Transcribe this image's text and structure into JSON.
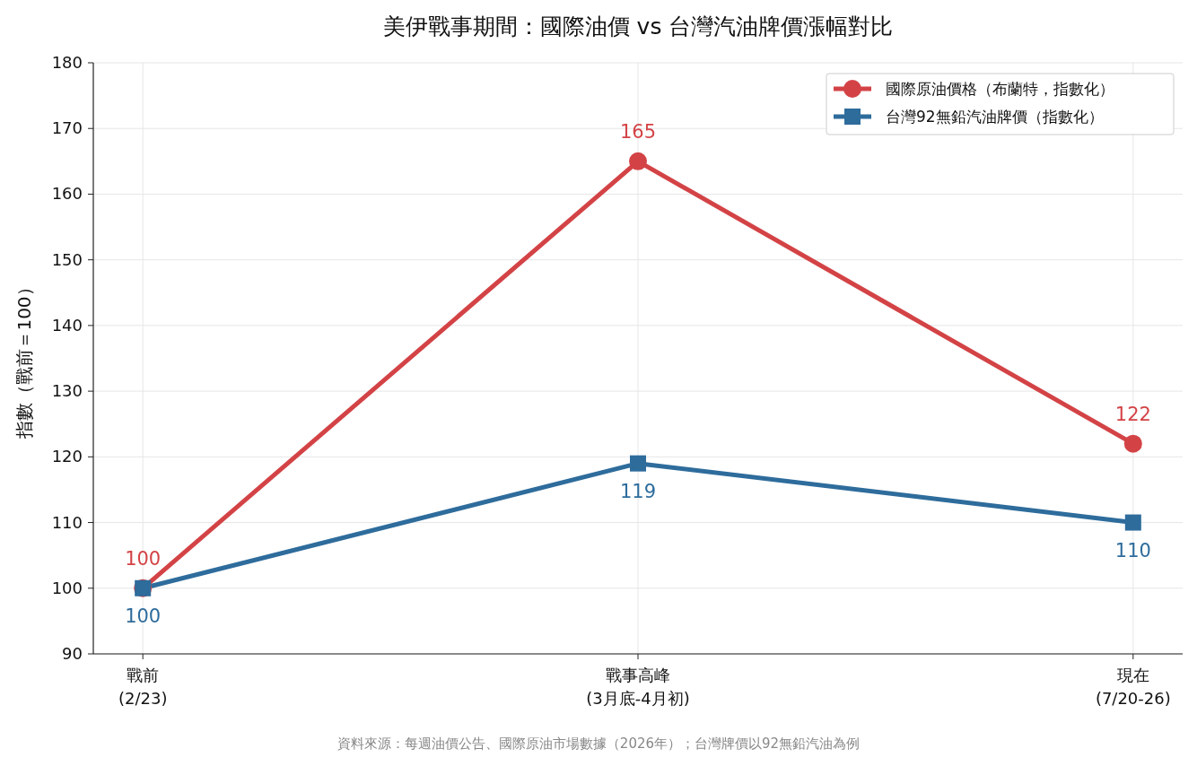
{
  "chart_data": {
    "type": "line",
    "title": "美伊戰事期間：國際油價 vs 台灣汽油牌價漲幅對比",
    "ylabel": "指數（戰前＝100）",
    "categories": [
      "戰前\n(2/23)",
      "戰事高峰\n(3月底-4月初)",
      "現在\n(7/20-26)"
    ],
    "series": [
      {
        "name": "國際原油價格（布蘭特，指數化）",
        "color": "#d34346",
        "values": [
          100,
          165,
          122
        ],
        "marker": "circle"
      },
      {
        "name": "台灣92無鉛汽油牌價（指數化）",
        "color": "#2e6c9c",
        "values": [
          100,
          119,
          110
        ],
        "marker": "square"
      }
    ],
    "ylim": [
      90,
      180
    ],
    "yticks": [
      90,
      100,
      110,
      120,
      130,
      140,
      150,
      160,
      170,
      180
    ],
    "grid": true,
    "legend": "top right",
    "data_labels": true,
    "annotations": [
      "資料來源：每週油價公告、國際原油市場數據（2026年）；台灣牌價以92無鉛汽油為例"
    ]
  }
}
